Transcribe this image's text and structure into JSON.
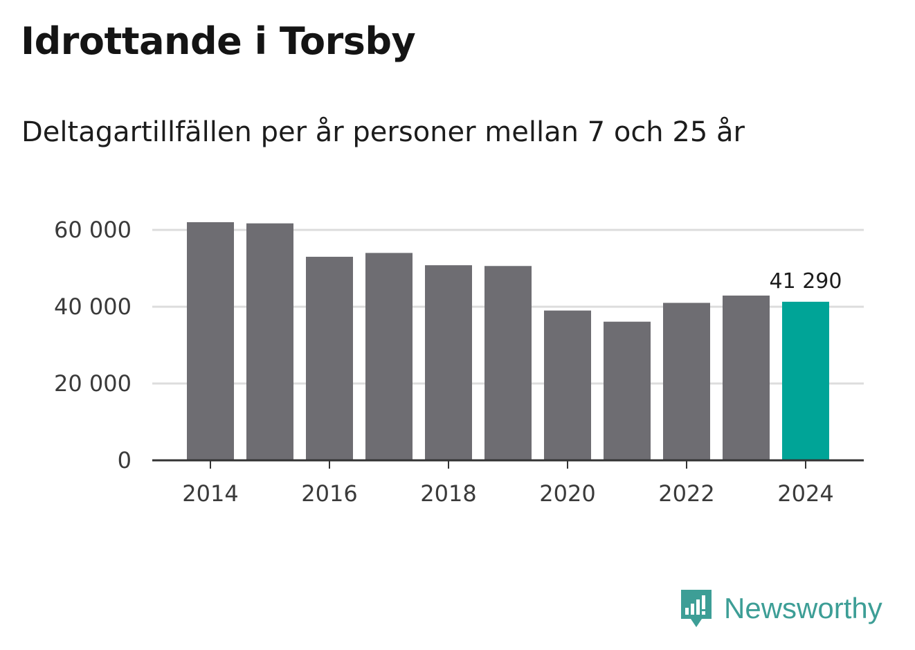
{
  "chart_data": {
    "type": "bar",
    "title": "Idrottande i Torsby",
    "subtitle": "Deltagartillfällen per år personer mellan 7 och 25 år",
    "x": [
      2014,
      2015,
      2016,
      2017,
      2018,
      2019,
      2020,
      2021,
      2022,
      2023,
      2024
    ],
    "values": [
      62000,
      61700,
      53000,
      54000,
      50800,
      50600,
      39000,
      36100,
      41000,
      42900,
      41290
    ],
    "x_tick_labels": [
      "2014",
      "2016",
      "2018",
      "2020",
      "2022",
      "2024"
    ],
    "y_ticks": [
      0,
      20000,
      40000,
      60000
    ],
    "y_tick_labels": [
      "0",
      "20 000",
      "40 000",
      "60 000"
    ],
    "ylim": [
      0,
      62000
    ],
    "grid": true,
    "highlight": {
      "index": 10,
      "label": "41 290"
    },
    "colors": {
      "bar": "#6e6d72",
      "highlight": "#00a497",
      "grid": "#dddddd",
      "axis": "#333333"
    }
  },
  "branding": {
    "name": "Newsworthy",
    "icon": "newsworthy-logo-icon",
    "color": "#3d9e96"
  }
}
